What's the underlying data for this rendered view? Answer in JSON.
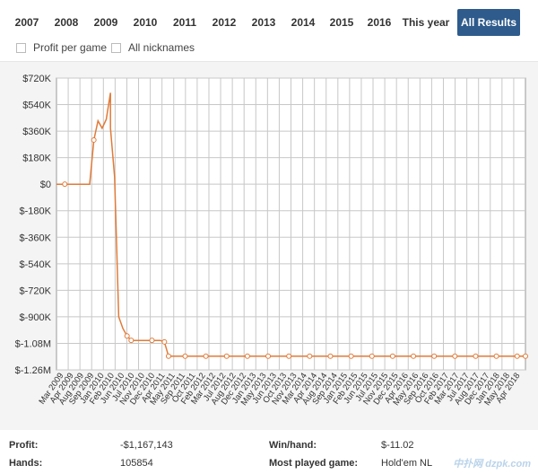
{
  "tabs": [
    "2007",
    "2008",
    "2009",
    "2010",
    "2011",
    "2012",
    "2013",
    "2014",
    "2015",
    "2016",
    "This year",
    "All Results"
  ],
  "active_tab": "All Results",
  "options": {
    "profit_per_game": "Profit per game",
    "all_nicknames": "All nicknames"
  },
  "stats": {
    "profit_label": "Profit:",
    "profit_value": "-$1,167,143",
    "hands_label": "Hands:",
    "hands_value": "105854",
    "winhand_label": "Win/hand:",
    "winhand_value": "$-11.02",
    "most_played_label": "Most played game:",
    "most_played_value": "Hold'em NL"
  },
  "watermark": "中扑网 dzpk.com",
  "colors": {
    "line": "#e07b39",
    "active_tab": "#2e5b8c",
    "plot_bg": "#ffffff",
    "grid": "#c8c8c8"
  },
  "chart_data": {
    "type": "line",
    "title": "",
    "xlabel": "",
    "ylabel": "",
    "ylim": [
      -1260000,
      720000
    ],
    "y_ticks": [
      720000,
      540000,
      360000,
      180000,
      0,
      -180000,
      -360000,
      -540000,
      -720000,
      -900000,
      -1080000,
      -1260000
    ],
    "y_tick_labels": [
      "$720K",
      "$540K",
      "$360K",
      "$180K",
      "$0",
      "$-180K",
      "$-360K",
      "$-540K",
      "$-720K",
      "$-900K",
      "$-1.08M",
      "$-1.26M"
    ],
    "x_tick_labels": [
      "Mar 2009",
      "Aug 2009",
      "Jan 2010",
      "Jun 2010",
      "Nov 2010",
      "Apr 2011",
      "Sep 2011",
      "Feb 2012",
      "Jul 2012",
      "Dec 2012",
      "May 2013",
      "Oct 2013",
      "Mar 2014",
      "Aug 2014",
      "Jan 2015",
      "Jun 2015",
      "Nov 2015",
      "Apr 2016",
      "Sep 2016",
      "Feb 2017",
      "Jul 2017",
      "Dec 2017",
      "May 2018"
    ],
    "x_tick_labels_extra": [
      "Apr 2009",
      "Sep 2009",
      "Feb 2010",
      "Jul 2010",
      "Dec 2010",
      "May 2011",
      "Oct 2011",
      "Mar 2012",
      "Aug 2012",
      "Jan 2013",
      "Jun 2013",
      "Nov 2013",
      "Apr 2014",
      "Sep 2014",
      "Feb 2015",
      "Jul 2015",
      "Dec 2015",
      "May 2016",
      "Oct 2016",
      "Mar 2017",
      "Aug 2017",
      "Jan 2018",
      "Apr 2018"
    ],
    "x_range": [
      "2009-01",
      "2018-06"
    ],
    "series": [
      {
        "points": [
          [
            "2009-01",
            0
          ],
          [
            "2009-03",
            0
          ],
          [
            "2009-06",
            0
          ],
          [
            "2009-09",
            0
          ],
          [
            "2009-10",
            300000
          ],
          [
            "2009-11",
            430000
          ],
          [
            "2009-12",
            380000
          ],
          [
            "2010-01",
            440000
          ],
          [
            "2010-02",
            620000
          ],
          [
            "2010-02",
            380000
          ],
          [
            "2010-03",
            50000
          ],
          [
            "2010-04",
            -900000
          ],
          [
            "2010-05",
            -980000
          ],
          [
            "2010-06",
            -1030000
          ],
          [
            "2010-07",
            -1060000
          ],
          [
            "2010-09",
            -1060000
          ],
          [
            "2010-12",
            -1060000
          ],
          [
            "2011-02",
            -1060000
          ],
          [
            "2011-03",
            -1070000
          ],
          [
            "2011-04",
            -1167143
          ],
          [
            "2011-08",
            -1167143
          ],
          [
            "2012-01",
            -1167143
          ],
          [
            "2012-06",
            -1167143
          ],
          [
            "2012-11",
            -1167143
          ],
          [
            "2013-04",
            -1167143
          ],
          [
            "2013-09",
            -1167143
          ],
          [
            "2014-02",
            -1167143
          ],
          [
            "2014-07",
            -1167143
          ],
          [
            "2014-12",
            -1167143
          ],
          [
            "2015-05",
            -1167143
          ],
          [
            "2015-10",
            -1167143
          ],
          [
            "2016-03",
            -1167143
          ],
          [
            "2016-08",
            -1167143
          ],
          [
            "2017-01",
            -1167143
          ],
          [
            "2017-06",
            -1167143
          ],
          [
            "2017-11",
            -1167143
          ],
          [
            "2018-04",
            -1167143
          ],
          [
            "2018-06",
            -1167143
          ]
        ]
      }
    ],
    "grid": true,
    "legend": "none"
  }
}
